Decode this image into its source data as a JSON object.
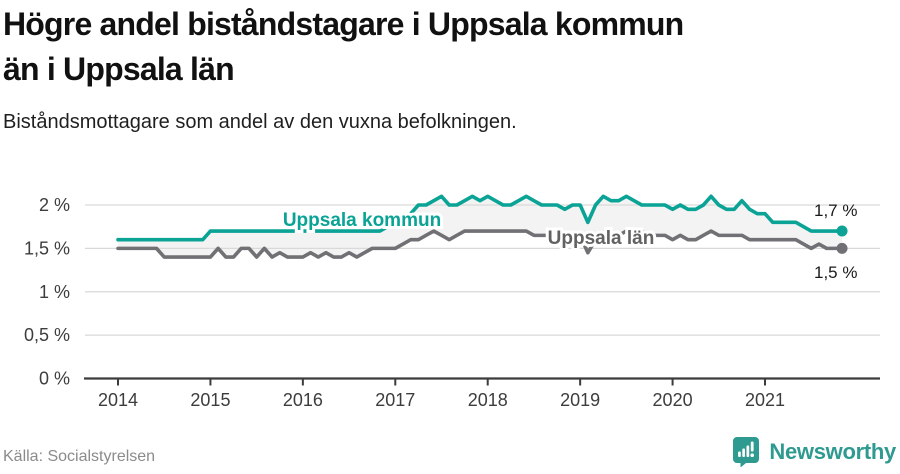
{
  "header": {
    "title": "Högre andel biståndstagare i Uppsala kommun än i Uppsala län",
    "title_lines": [
      "Högre andel biståndstagare i Uppsala kommun",
      "än i Uppsala län"
    ],
    "subtitle": "Biståndsmottagare som andel av den vuxna befolkningen."
  },
  "footer": {
    "source": "Källa: Socialstyrelsen",
    "brand": "Newsworthy"
  },
  "colors": {
    "accent_teal": "#0aa396",
    "line_gray": "#717175",
    "label_gray": "#626262",
    "grid": "#d9d9d9",
    "axis": "#3c3c3c",
    "between_fill": "#f3f3f3",
    "value_label": "#1a1a1a",
    "brand_teal": "#2f9a90"
  },
  "chart_data": {
    "type": "line",
    "title": "Högre andel biståndstagare i Uppsala kommun än i Uppsala län",
    "subtitle": "Biståndsmottagare som andel av den vuxna befolkningen.",
    "x_unit": "month",
    "x_start": "2014-01",
    "x_end": "2021-11",
    "grid": true,
    "ylim": [
      0,
      2.17
    ],
    "year_ticks": [
      "2014",
      "2015",
      "2016",
      "2017",
      "2018",
      "2019",
      "2020",
      "2021"
    ],
    "yticks": [
      {
        "label": "0 %",
        "value": 0
      },
      {
        "label": "0,5 %",
        "value": 0.5
      },
      {
        "label": "1 %",
        "value": 1
      },
      {
        "label": "1,5 %",
        "value": 1.5
      },
      {
        "label": "2 %",
        "value": 2
      }
    ],
    "series": [
      {
        "name": "Uppsala kommun",
        "color": "#0aa396",
        "end_value_label": "1,7 %",
        "values": [
          1.6,
          1.6,
          1.6,
          1.6,
          1.6,
          1.6,
          1.6,
          1.6,
          1.6,
          1.6,
          1.6,
          1.6,
          1.7,
          1.7,
          1.7,
          1.7,
          1.7,
          1.7,
          1.7,
          1.7,
          1.7,
          1.7,
          1.7,
          1.7,
          1.7,
          1.7,
          1.7,
          1.7,
          1.7,
          1.7,
          1.7,
          1.7,
          1.7,
          1.7,
          1.7,
          1.75,
          1.8,
          1.85,
          1.9,
          2.0,
          2.0,
          2.05,
          2.1,
          2.0,
          2.0,
          2.05,
          2.1,
          2.05,
          2.1,
          2.05,
          2.0,
          2.0,
          2.05,
          2.1,
          2.05,
          2.0,
          2.0,
          2.0,
          1.95,
          2.0,
          2.0,
          1.8,
          2.0,
          2.1,
          2.05,
          2.05,
          2.1,
          2.05,
          2.0,
          2.0,
          2.0,
          2.0,
          1.95,
          2.0,
          1.95,
          1.95,
          2.0,
          2.1,
          2.0,
          1.95,
          1.95,
          2.05,
          1.95,
          1.9,
          1.9,
          1.8,
          1.8,
          1.8,
          1.8,
          1.75,
          1.7,
          1.7,
          1.7,
          1.7,
          1.7
        ]
      },
      {
        "name": "Uppsala län",
        "color": "#717175",
        "end_value_label": "1,5 %",
        "values": [
          1.5,
          1.5,
          1.5,
          1.5,
          1.5,
          1.5,
          1.4,
          1.4,
          1.4,
          1.4,
          1.4,
          1.4,
          1.4,
          1.5,
          1.4,
          1.4,
          1.5,
          1.5,
          1.4,
          1.5,
          1.4,
          1.45,
          1.4,
          1.4,
          1.4,
          1.45,
          1.4,
          1.45,
          1.4,
          1.4,
          1.45,
          1.4,
          1.45,
          1.5,
          1.5,
          1.5,
          1.5,
          1.55,
          1.6,
          1.6,
          1.65,
          1.7,
          1.65,
          1.6,
          1.65,
          1.7,
          1.7,
          1.7,
          1.7,
          1.7,
          1.7,
          1.7,
          1.7,
          1.7,
          1.65,
          1.65,
          1.65,
          1.65,
          1.65,
          1.65,
          1.65,
          1.45,
          1.6,
          1.65,
          1.6,
          1.65,
          1.7,
          1.65,
          1.7,
          1.65,
          1.65,
          1.65,
          1.6,
          1.65,
          1.6,
          1.6,
          1.65,
          1.7,
          1.65,
          1.65,
          1.65,
          1.65,
          1.6,
          1.6,
          1.6,
          1.6,
          1.6,
          1.6,
          1.6,
          1.55,
          1.5,
          1.55,
          1.5,
          1.5,
          1.5
        ]
      }
    ],
    "legend_position": "inline-labels"
  }
}
